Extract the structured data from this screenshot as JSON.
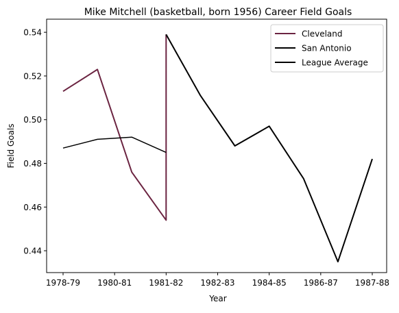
{
  "chart_data": {
    "type": "line",
    "title": "Mike Mitchell (basketball, born 1956) Career Field Goals",
    "xlabel": "Year",
    "ylabel": "Field Goals",
    "x_ticks": [
      "1978-79",
      "1980-81",
      "1981-82",
      "1982-83",
      "1984-85",
      "1986-87",
      "1987-88"
    ],
    "y_ticks": [
      "0.44",
      "0.46",
      "0.48",
      "0.50",
      "0.52",
      "0.54"
    ],
    "ylim": [
      0.43,
      0.546
    ],
    "grid": false,
    "legend_position": "top-right",
    "series": [
      {
        "name": "Cleveland",
        "color": "#6b2441",
        "width": 2,
        "points": [
          [
            0,
            0.513
          ],
          [
            1,
            0.523
          ],
          [
            2,
            0.476
          ],
          [
            3,
            0.454
          ],
          [
            3,
            0.539
          ]
        ]
      },
      {
        "name": "San Antonio",
        "color": "#000000",
        "width": 2,
        "points": [
          [
            3,
            0.539
          ],
          [
            4,
            0.511
          ],
          [
            5,
            0.488
          ],
          [
            6,
            0.497
          ],
          [
            7,
            0.473
          ],
          [
            8,
            0.435
          ],
          [
            9,
            0.482
          ]
        ]
      },
      {
        "name": "League Average",
        "color": "#000000",
        "width": 1.5,
        "points": [
          [
            0,
            0.487
          ],
          [
            1,
            0.491
          ],
          [
            2,
            0.492
          ],
          [
            3,
            0.485
          ]
        ]
      }
    ]
  }
}
